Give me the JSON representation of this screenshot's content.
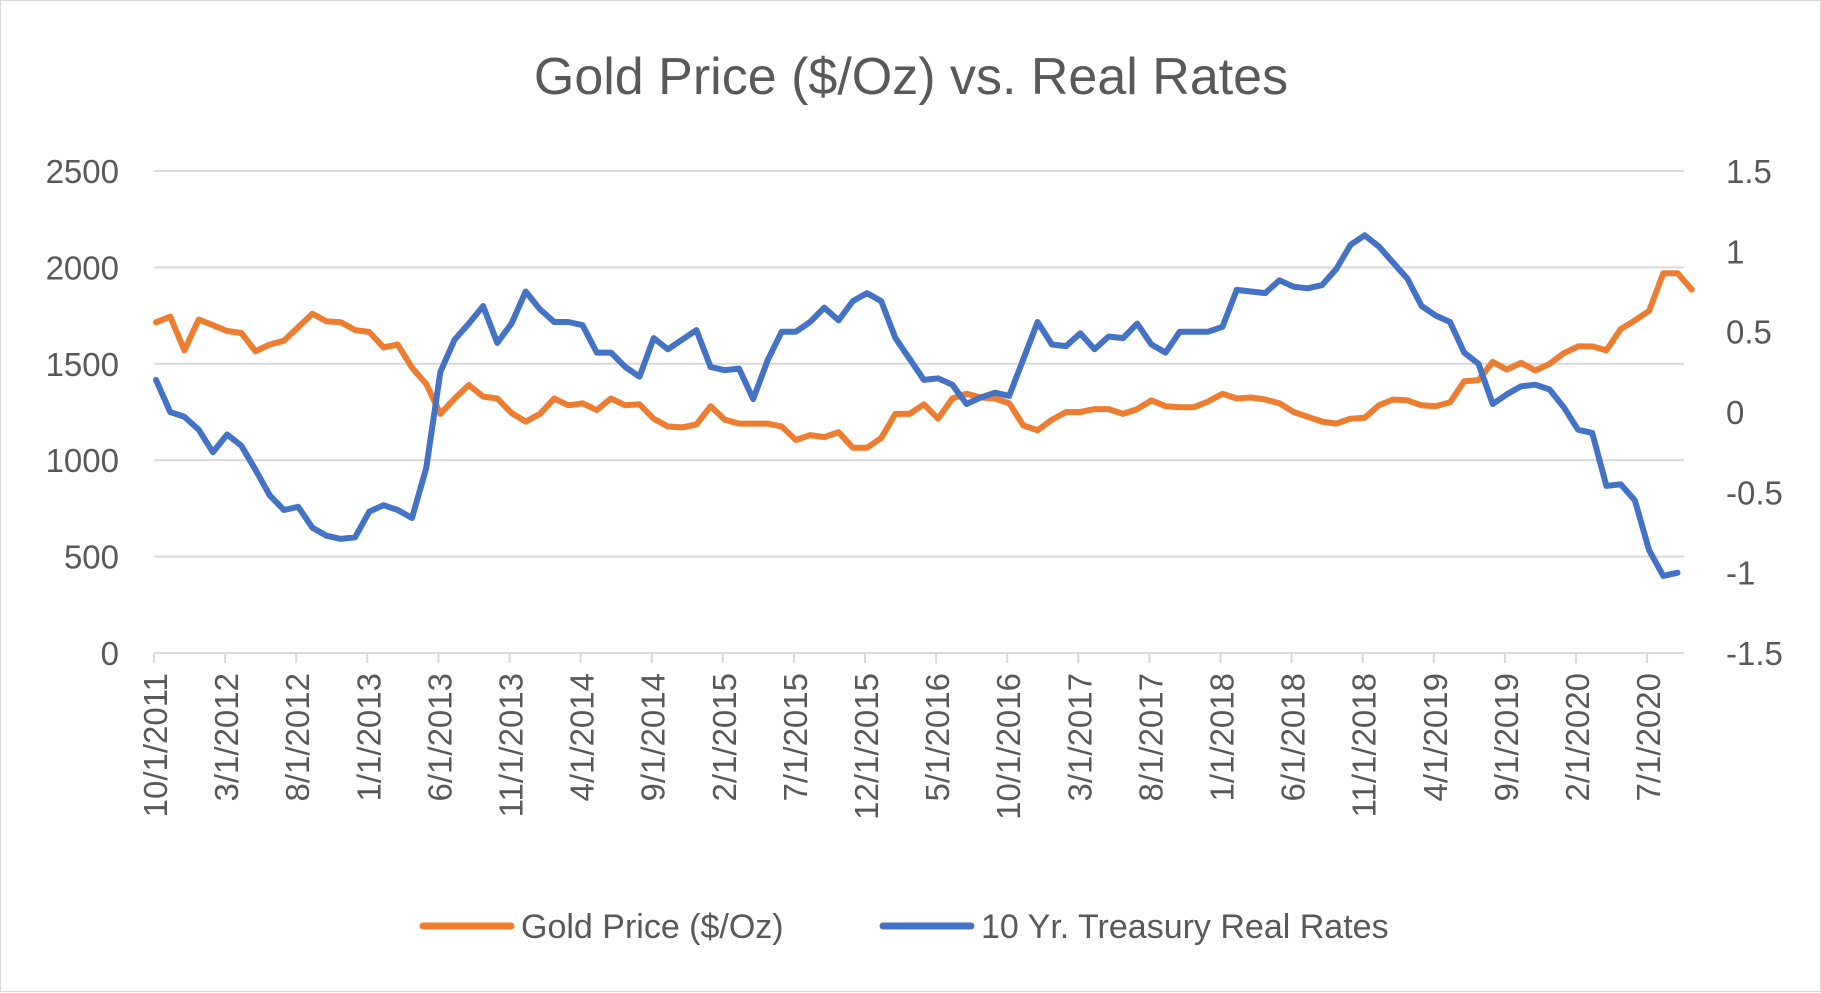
{
  "colors": {
    "gold": "#ED7D31",
    "rates": "#4472C4",
    "grid": "#d9d9d9",
    "text": "#595959"
  },
  "chart_data": {
    "type": "line",
    "title": "Gold Price ($/Oz) vs. Real Rates",
    "xlabel": "",
    "ylabel": "",
    "y_left": {
      "min": 0,
      "max": 2500,
      "ticks": [
        "0",
        "500",
        "1000",
        "1500",
        "2000",
        "2500"
      ]
    },
    "y_right": {
      "min": -1.5,
      "max": 1.5,
      "ticks": [
        "-1.5",
        "-1",
        "-0.5",
        "0",
        "0.5",
        "1",
        "1.5"
      ]
    },
    "x_labels": [
      "10/1/2011",
      "3/1/2012",
      "8/1/2012",
      "1/1/2013",
      "6/1/2013",
      "11/1/2013",
      "4/1/2014",
      "9/1/2014",
      "2/1/2015",
      "7/1/2015",
      "12/1/2015",
      "5/1/2016",
      "10/1/2016",
      "3/1/2017",
      "8/1/2017",
      "1/1/2018",
      "6/1/2018",
      "11/1/2018",
      "4/1/2019",
      "9/1/2019",
      "2/1/2020",
      "7/1/2020"
    ],
    "x_start": "10/1/2011",
    "x_step": "1 month",
    "grid": true,
    "legend_position": "bottom",
    "series": [
      {
        "name": "Gold Price ($/Oz)",
        "axis": "left",
        "values": [
          1715,
          1745,
          1570,
          1730,
          1700,
          1670,
          1660,
          1565,
          1600,
          1620,
          1690,
          1760,
          1720,
          1715,
          1675,
          1665,
          1585,
          1600,
          1480,
          1395,
          1240,
          1320,
          1390,
          1330,
          1320,
          1245,
          1200,
          1240,
          1320,
          1285,
          1295,
          1260,
          1320,
          1285,
          1290,
          1215,
          1175,
          1170,
          1185,
          1280,
          1210,
          1190,
          1190,
          1190,
          1175,
          1105,
          1130,
          1120,
          1145,
          1065,
          1065,
          1115,
          1240,
          1240,
          1290,
          1215,
          1320,
          1345,
          1325,
          1320,
          1295,
          1180,
          1155,
          1210,
          1250,
          1250,
          1265,
          1265,
          1240,
          1265,
          1310,
          1280,
          1275,
          1275,
          1305,
          1345,
          1320,
          1325,
          1315,
          1295,
          1250,
          1225,
          1200,
          1190,
          1215,
          1220,
          1285,
          1315,
          1310,
          1285,
          1280,
          1300,
          1410,
          1415,
          1510,
          1470,
          1505,
          1465,
          1500,
          1555,
          1590,
          1590,
          1570,
          1680,
          1725,
          1775,
          1970,
          1970,
          1885
        ]
      },
      {
        "name": "10 Yr. Treasury Real Rates",
        "axis": "right",
        "values": [
          0.2,
          0.0,
          -0.03,
          -0.11,
          -0.25,
          -0.14,
          -0.21,
          -0.36,
          -0.52,
          -0.61,
          -0.59,
          -0.72,
          -0.77,
          -0.79,
          -0.78,
          -0.62,
          -0.58,
          -0.61,
          -0.66,
          -0.35,
          0.25,
          0.45,
          0.55,
          0.66,
          0.43,
          0.55,
          0.75,
          0.64,
          0.56,
          0.56,
          0.54,
          0.37,
          0.37,
          0.28,
          0.22,
          0.46,
          0.39,
          0.45,
          0.51,
          0.28,
          0.26,
          0.27,
          0.08,
          0.32,
          0.5,
          0.5,
          0.56,
          0.65,
          0.57,
          0.69,
          0.74,
          0.69,
          0.46,
          0.33,
          0.2,
          0.21,
          0.17,
          0.05,
          0.09,
          0.12,
          0.1,
          0.33,
          0.56,
          0.42,
          0.41,
          0.49,
          0.39,
          0.47,
          0.46,
          0.55,
          0.42,
          0.37,
          0.5,
          0.5,
          0.5,
          0.53,
          0.76,
          0.75,
          0.74,
          0.82,
          0.78,
          0.77,
          0.79,
          0.89,
          1.04,
          1.1,
          1.03,
          0.93,
          0.83,
          0.66,
          0.6,
          0.56,
          0.37,
          0.3,
          0.05,
          0.11,
          0.16,
          0.17,
          0.14,
          0.03,
          -0.11,
          -0.13,
          -0.46,
          -0.45,
          -0.55,
          -0.86,
          -1.02,
          -1.0
        ]
      }
    ]
  }
}
